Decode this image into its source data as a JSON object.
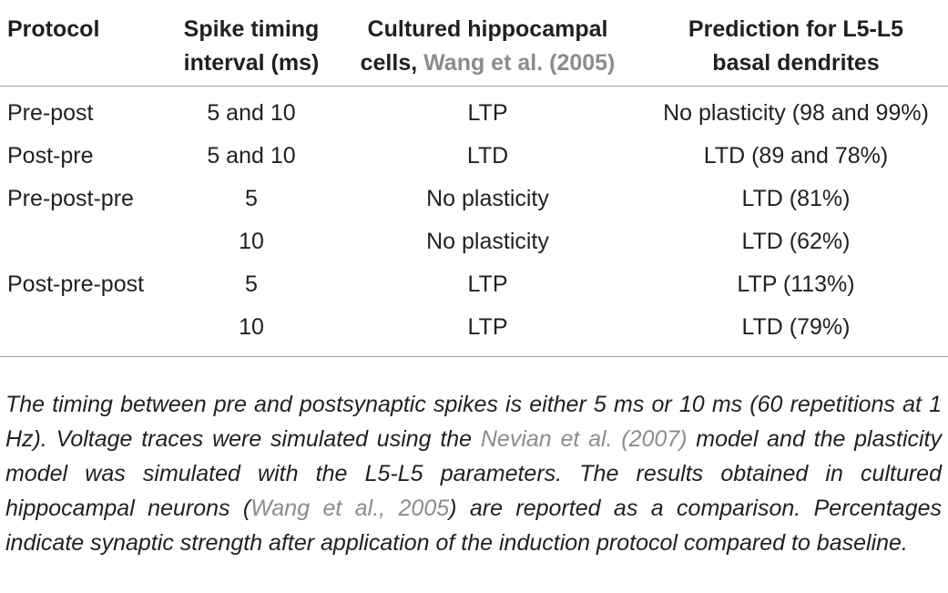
{
  "table": {
    "headers": {
      "col1": "Protocol",
      "col2_line1": "Spike timing",
      "col2_line2": "interval (ms)",
      "col3_line1": "Cultured hippocampal",
      "col3_line2_prefix": "cells, ",
      "col3_line2_ref": "Wang et al. (2005)",
      "col4_line1": "Prediction for L5-L5",
      "col4_line2": "basal dendrites"
    },
    "rows": [
      {
        "protocol": "Pre-post",
        "interval": "5 and 10",
        "cultured": "LTP",
        "prediction": "No plasticity (98 and 99%)"
      },
      {
        "protocol": "Post-pre",
        "interval": "5 and 10",
        "cultured": "LTD",
        "prediction": "LTD (89 and 78%)"
      },
      {
        "protocol": "Pre-post-pre",
        "interval": "5",
        "cultured": "No plasticity",
        "prediction": "LTD (81%)"
      },
      {
        "protocol": "",
        "interval": "10",
        "cultured": "No plasticity",
        "prediction": "LTD (62%)"
      },
      {
        "protocol": "Post-pre-post",
        "interval": "5",
        "cultured": "LTP",
        "prediction": "LTP (113%)"
      },
      {
        "protocol": "",
        "interval": "10",
        "cultured": "LTP",
        "prediction": "LTD (79%)"
      }
    ]
  },
  "caption": {
    "part1": "The timing between pre and postsynaptic spikes is either 5 ms or 10 ms (60 repetitions at 1 Hz). Voltage traces were simulated using the ",
    "ref1": "Nevian et al. (2007)",
    "part2": " model and the plasticity model was simulated with the L5-L5 parameters. The results obtained in cultured hippocampal neurons (",
    "ref2": "Wang et al., 2005",
    "part3": ") are reported as a comparison. Percentages indicate synaptic strength after application of the induction protocol compared to baseline."
  },
  "colors": {
    "text": "#231f20",
    "reference_link": "#8c8c8c",
    "rule": "#9d9d9d"
  }
}
